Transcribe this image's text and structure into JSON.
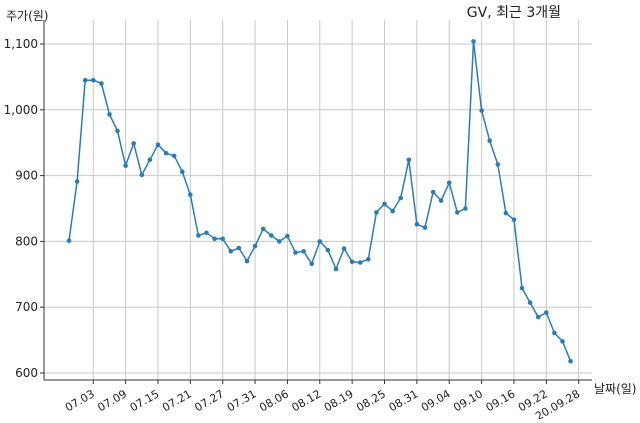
{
  "chart_data": {
    "type": "line",
    "title": "GV, 최근 3개월",
    "ylabel": "주가(원)",
    "xlabel": "날짜(일)",
    "ylim": [
      600,
      1120
    ],
    "yticks": [
      600,
      700,
      800,
      900,
      1000,
      1100
    ],
    "ytick_labels": [
      "600",
      "700",
      "800",
      "900",
      "1,000",
      "1,100"
    ],
    "xtick_labels": [
      "07.03",
      "07.09",
      "07.15",
      "07.21",
      "07.27",
      "07.31",
      "08.06",
      "08.12",
      "08.19",
      "08.25",
      "08.31",
      "09.04",
      "09.10",
      "09.16",
      "09.22",
      "20.09.28"
    ],
    "xtick_index": [
      3,
      7,
      11,
      15,
      19,
      23,
      27,
      31,
      35,
      39,
      43,
      47,
      51,
      55,
      59,
      63
    ],
    "grid": true,
    "line_color": "#2b7bb9",
    "series": [
      {
        "values": [
          801,
          891,
          1045,
          1045,
          1040,
          993,
          968,
          915,
          949,
          901,
          924,
          947,
          934,
          930,
          906,
          871,
          809,
          813,
          804,
          804,
          785,
          790,
          770,
          793,
          819,
          809,
          800,
          808,
          783,
          785,
          766,
          800,
          787,
          758,
          789,
          769,
          768,
          773,
          844,
          857,
          846,
          866,
          924,
          826,
          821,
          875,
          862,
          889,
          844,
          850,
          1104,
          999,
          953,
          917,
          843,
          833,
          729,
          707,
          685,
          692,
          661,
          648,
          618
        ]
      }
    ]
  }
}
